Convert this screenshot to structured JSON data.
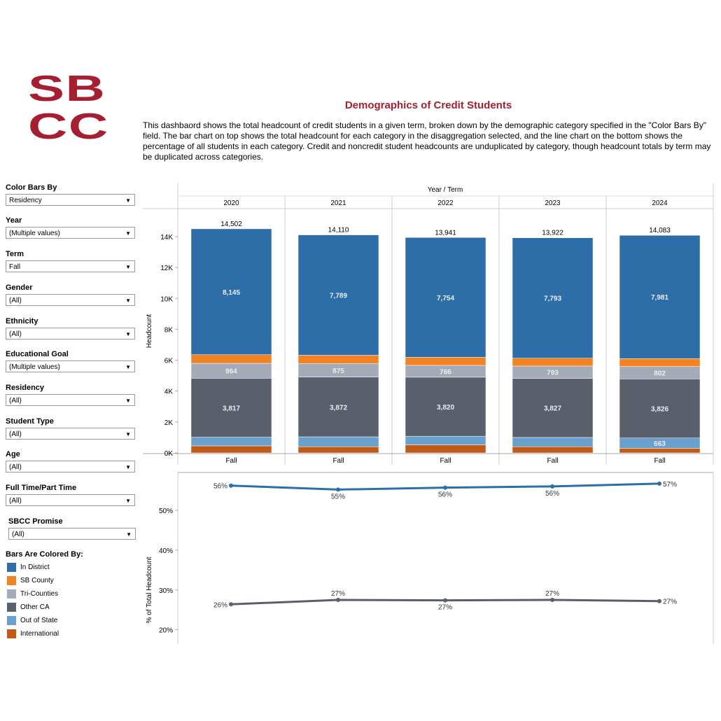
{
  "logo": {
    "line1": "SB",
    "line2": "CC",
    "color": "#a51f31"
  },
  "header": {
    "title": "Demographics of Credit Students",
    "description": "This dashbaord shows the total headcount of credit students in a given term, broken down by the demographic category specified in the \"Color Bars By\" field. The bar chart on top shows the total headcount for each category in the disaggregation selected, and the line chart on the bottom shows the percentage of all students in each category. Credit and noncredit student headcounts are unduplicated by category, though headcount totals by term may be duplicated across categories."
  },
  "filters": [
    {
      "label": "Color Bars By",
      "value": "Residency"
    },
    {
      "label": "Year",
      "value": "(Multiple values)"
    },
    {
      "label": "Term",
      "value": "Fall"
    },
    {
      "label": "Gender",
      "value": "(All)"
    },
    {
      "label": "Ethnicity",
      "value": "(All)"
    },
    {
      "label": "Educational Goal",
      "value": "(Multiple values)"
    },
    {
      "label": "Residency",
      "value": "(All)"
    },
    {
      "label": "Student Type",
      "value": "(All)"
    },
    {
      "label": "Age",
      "value": "(All)"
    },
    {
      "label": "Full Time/Part Time",
      "value": "(All)"
    },
    {
      "label": "SBCC Promise",
      "value": "(All)"
    }
  ],
  "legend": {
    "title": "Bars Are Colored By:",
    "items": [
      {
        "label": "In District",
        "color": "#2e6ea8"
      },
      {
        "label": "SB County",
        "color": "#f28322"
      },
      {
        "label": "Tri-Counties",
        "color": "#a5abb6"
      },
      {
        "label": "Other CA",
        "color": "#5a606b"
      },
      {
        "label": "Out of State",
        "color": "#6aa0cc"
      },
      {
        "label": "International",
        "color": "#c05a16"
      }
    ]
  },
  "chart_data": [
    {
      "type": "bar",
      "stacked": true,
      "header": "Year / Term",
      "years": [
        "2020",
        "2021",
        "2022",
        "2023",
        "2024"
      ],
      "term": "Fall",
      "ylabel": "Headcount",
      "ylim": [
        0,
        15500
      ],
      "yticks": [
        "0K",
        "2K",
        "4K",
        "6K",
        "8K",
        "10K",
        "12K",
        "14K"
      ],
      "totals": [
        "14,502",
        "14,110",
        "13,941",
        "13,922",
        "14,083"
      ],
      "series": [
        {
          "name": "International",
          "values": [
            456,
            400,
            520,
            400,
            300
          ],
          "labels": [
            "",
            "",
            "",
            "",
            ""
          ]
        },
        {
          "name": "Out of State",
          "values": [
            560,
            640,
            560,
            600,
            663
          ],
          "labels": [
            "",
            "",
            "",
            "",
            "663"
          ]
        },
        {
          "name": "Other CA",
          "values": [
            3817,
            3872,
            3820,
            3827,
            3826
          ],
          "labels": [
            "3,817",
            "3,872",
            "3,820",
            "3,827",
            "3,826"
          ]
        },
        {
          "name": "Tri-Counties",
          "values": [
            964,
            875,
            766,
            793,
            802
          ],
          "labels": [
            "964",
            "875",
            "766",
            "793",
            "802"
          ]
        },
        {
          "name": "SB County",
          "values": [
            560,
            534,
            521,
            509,
            511
          ],
          "labels": [
            "",
            "",
            "",
            "",
            ""
          ]
        },
        {
          "name": "In District",
          "values": [
            8145,
            7789,
            7754,
            7793,
            7981
          ],
          "labels": [
            "8,145",
            "7,789",
            "7,754",
            "7,793",
            "7,981"
          ]
        }
      ]
    },
    {
      "type": "line",
      "ylabel": "% of Total Headcount",
      "ylim": [
        17.5,
        58.5
      ],
      "yticks": [
        "20%",
        "30%",
        "40%",
        "50%"
      ],
      "series": [
        {
          "name": "In District",
          "color": "#2e6ea8",
          "values": [
            56.2,
            55.2,
            55.7,
            56.0,
            56.7
          ],
          "labels": [
            "56%",
            "55%",
            "56%",
            "56%",
            "57%"
          ]
        },
        {
          "name": "Other CA",
          "color": "#5a606b",
          "values": [
            26.4,
            27.5,
            27.4,
            27.5,
            27.2
          ],
          "labels": [
            "26%",
            "27%",
            "27%",
            "27%",
            "27%"
          ]
        }
      ]
    }
  ]
}
